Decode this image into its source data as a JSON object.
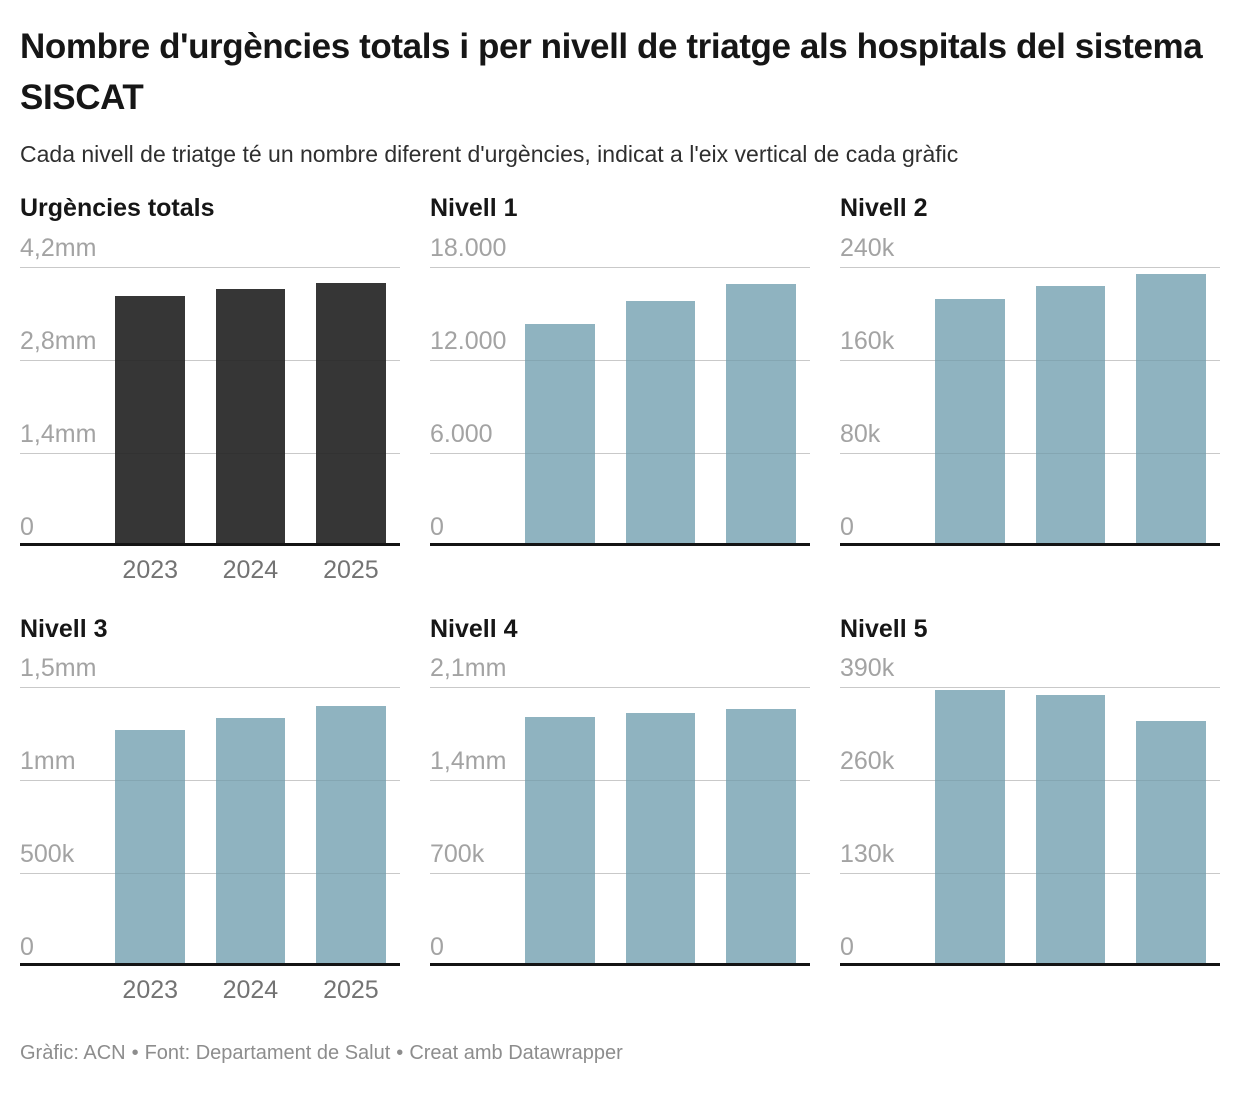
{
  "header": {
    "title": "Nombre d'urgències totals i per nivell de triatge als hospitals del sistema SISCAT",
    "subtitle": "Cada nivell de triatge té un nombre diferent d'urgències, indicat a l'eix vertical de cada gràfic"
  },
  "colors": {
    "total_bar": "#363636",
    "level_bar": "#8FB3C0",
    "gridline": "#d9d9d9",
    "axis_line": "#141414",
    "tick_label": "#a3a3a3",
    "year_label": "#737373",
    "title_text": "#161616",
    "footer_text": "#8d8d8d"
  },
  "footer": {
    "graphic": "Gràfic: ACN",
    "separator": "•",
    "source": "Font: Departament de Salut",
    "credit": "Creat amb Datawrapper"
  },
  "chart_data": [
    {
      "type": "bar",
      "title": "Urgències totals",
      "categories": [
        "2023",
        "2024",
        "2025"
      ],
      "values": [
        3760000,
        3870000,
        3950000
      ],
      "ylim": [
        0,
        4200000
      ],
      "yticks": [
        {
          "value": 4200000,
          "label": "4,2mm"
        },
        {
          "value": 2800000,
          "label": "2,8mm"
        },
        {
          "value": 1400000,
          "label": "1,4mm"
        },
        {
          "value": 0,
          "label": "0"
        }
      ],
      "bar_color": "#363636",
      "show_x_labels": true,
      "grid": true,
      "legend": "none"
    },
    {
      "type": "bar",
      "title": "Nivell 1",
      "categories": [
        "2023",
        "2024",
        "2025"
      ],
      "values": [
        14300,
        15800,
        16900
      ],
      "ylim": [
        0,
        18000
      ],
      "yticks": [
        {
          "value": 18000,
          "label": "18.000"
        },
        {
          "value": 12000,
          "label": "12.000"
        },
        {
          "value": 6000,
          "label": "6.000"
        },
        {
          "value": 0,
          "label": "0"
        }
      ],
      "bar_color": "#8FB3C0",
      "show_x_labels": false,
      "grid": true,
      "legend": "none"
    },
    {
      "type": "bar",
      "title": "Nivell 2",
      "categories": [
        "2023",
        "2024",
        "2025"
      ],
      "values": [
        212000,
        223000,
        234000
      ],
      "ylim": [
        0,
        240000
      ],
      "yticks": [
        {
          "value": 240000,
          "label": "240k"
        },
        {
          "value": 160000,
          "label": "160k"
        },
        {
          "value": 80000,
          "label": "80k"
        },
        {
          "value": 0,
          "label": "0"
        }
      ],
      "bar_color": "#8FB3C0",
      "show_x_labels": false,
      "grid": true,
      "legend": "none"
    },
    {
      "type": "bar",
      "title": "Nivell 3",
      "categories": [
        "2023",
        "2024",
        "2025"
      ],
      "values": [
        1270000,
        1335000,
        1400000
      ],
      "ylim": [
        0,
        1500000
      ],
      "yticks": [
        {
          "value": 1500000,
          "label": "1,5mm"
        },
        {
          "value": 1000000,
          "label": "1mm"
        },
        {
          "value": 500000,
          "label": "500k"
        },
        {
          "value": 0,
          "label": "0"
        }
      ],
      "bar_color": "#8FB3C0",
      "show_x_labels": true,
      "grid": true,
      "legend": "none"
    },
    {
      "type": "bar",
      "title": "Nivell 4",
      "categories": [
        "2023",
        "2024",
        "2025"
      ],
      "values": [
        1870000,
        1900000,
        1935000
      ],
      "ylim": [
        0,
        2100000
      ],
      "yticks": [
        {
          "value": 2100000,
          "label": "2,1mm"
        },
        {
          "value": 1400000,
          "label": "1,4mm"
        },
        {
          "value": 700000,
          "label": "700k"
        },
        {
          "value": 0,
          "label": "0"
        }
      ],
      "bar_color": "#8FB3C0",
      "show_x_labels": false,
      "grid": true,
      "legend": "none"
    },
    {
      "type": "bar",
      "title": "Nivell 5",
      "categories": [
        "2023",
        "2024",
        "2025"
      ],
      "values": [
        386000,
        379000,
        343000
      ],
      "ylim": [
        0,
        390000
      ],
      "yticks": [
        {
          "value": 390000,
          "label": "390k"
        },
        {
          "value": 260000,
          "label": "260k"
        },
        {
          "value": 130000,
          "label": "130k"
        },
        {
          "value": 0,
          "label": "0"
        }
      ],
      "bar_color": "#8FB3C0",
      "show_x_labels": false,
      "grid": true,
      "legend": "none"
    }
  ]
}
